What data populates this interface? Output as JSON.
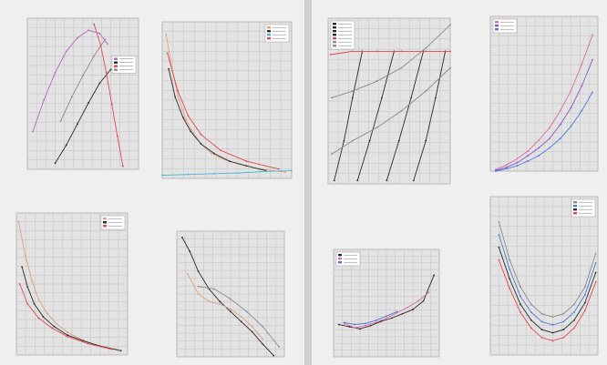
{
  "pages": [
    {
      "name": "left-sheet",
      "background": "#efefef"
    },
    {
      "name": "right-sheet",
      "background": "#efefef"
    }
  ],
  "colors": {
    "plot_bg": "#e3e3e3",
    "grid": "#b9b9b9",
    "black": "#2a2a2a",
    "orange": "#d9a27a",
    "red": "#e2474b",
    "pink": "#d96aa5",
    "purple": "#8a54c8",
    "blue": "#4f78d6",
    "cyan": "#45b8d6",
    "gray": "#8a8a8a"
  },
  "chart_data": [
    {
      "id": "c1",
      "type": "line",
      "title": "",
      "xlabel": "",
      "ylabel": "",
      "grid": true,
      "legend": "right",
      "xlim": [
        0,
        10
      ],
      "ylim": [
        0,
        10
      ],
      "series": [
        {
          "color": "#b06ab8",
          "x": [
            0.5,
            1.5,
            2.5,
            3.5,
            4.5,
            5.5,
            6.5,
            7.2
          ],
          "y": [
            2.5,
            4.6,
            6.4,
            7.8,
            8.7,
            9.2,
            9.0,
            8.3
          ]
        },
        {
          "color": "#2a2a2a",
          "x": [
            2.5,
            3.5,
            4.5,
            5.5,
            6.5,
            7.5
          ],
          "y": [
            0.4,
            1.6,
            3.0,
            4.4,
            5.7,
            6.6
          ]
        },
        {
          "color": "#e2474b",
          "x": [
            6.0,
            6.6,
            7.1,
            7.6,
            8.1,
            8.6
          ],
          "y": [
            9.6,
            8.2,
            6.4,
            4.3,
            2.2,
            0.2
          ]
        },
        {
          "color": "#8a8a8a",
          "x": [
            3.0,
            4.0,
            5.0,
            6.0,
            7.0
          ],
          "y": [
            3.2,
            4.8,
            6.2,
            7.5,
            8.6
          ]
        }
      ]
    },
    {
      "id": "c2",
      "type": "line",
      "title": "",
      "xlabel": "",
      "ylabel": "",
      "grid": true,
      "legend": "top-right",
      "xlim": [
        0,
        10
      ],
      "ylim": [
        0,
        10
      ],
      "series": [
        {
          "color": "#d9a27a",
          "x": [
            0.3,
            0.8,
            1.3,
            1.8,
            2.4,
            3.0,
            3.8,
            4.8,
            6.0,
            7.5,
            9.5
          ],
          "y": [
            9.2,
            6.8,
            5.0,
            3.8,
            2.9,
            2.2,
            1.6,
            1.2,
            0.9,
            0.6,
            0.4
          ]
        },
        {
          "color": "#2a2a2a",
          "x": [
            0.5,
            1.0,
            1.6,
            2.2,
            3.0,
            4.0,
            5.2,
            6.5,
            8.0
          ],
          "y": [
            7.0,
            5.2,
            3.9,
            3.0,
            2.2,
            1.6,
            1.1,
            0.8,
            0.5
          ]
        },
        {
          "color": "#45b8d6",
          "x": [
            0.0,
            2.0,
            4.0,
            6.0,
            8.0,
            10.0
          ],
          "y": [
            0.2,
            0.25,
            0.3,
            0.35,
            0.45,
            0.5
          ]
        },
        {
          "color": "#e2474b",
          "x": [
            0.4,
            1.2,
            2.0,
            3.0,
            4.5,
            6.5,
            9.0
          ],
          "y": [
            8.0,
            5.6,
            4.0,
            2.8,
            1.8,
            1.1,
            0.6
          ]
        }
      ]
    },
    {
      "id": "c3",
      "type": "line",
      "title": "",
      "xlabel": "",
      "ylabel": "",
      "grid": true,
      "legend": "top-right",
      "xlim": [
        0,
        10
      ],
      "ylim": [
        0,
        10
      ],
      "series": [
        {
          "color": "#d9a27a",
          "x": [
            0.2,
            0.8,
            1.4,
            2.0,
            2.8,
            3.6,
            4.6,
            5.8,
            7.2,
            9.0
          ],
          "y": [
            9.4,
            7.0,
            5.2,
            3.9,
            2.9,
            2.2,
            1.6,
            1.1,
            0.7,
            0.4
          ]
        },
        {
          "color": "#2a2a2a",
          "x": [
            0.5,
            1.0,
            1.6,
            2.4,
            3.4,
            4.6,
            6.0,
            7.6,
            9.4
          ],
          "y": [
            6.2,
            4.8,
            3.6,
            2.7,
            2.0,
            1.4,
            1.0,
            0.6,
            0.3
          ]
        },
        {
          "color": "#e2474b",
          "x": [
            0.3,
            1.0,
            2.0,
            3.2,
            4.6,
            6.4,
            8.6
          ],
          "y": [
            5.0,
            3.6,
            2.6,
            1.9,
            1.3,
            0.8,
            0.4
          ]
        }
      ]
    },
    {
      "id": "c4",
      "type": "line",
      "title": "",
      "xlabel": "",
      "ylabel": "",
      "grid": true,
      "legend": "none",
      "xlim": [
        0,
        10
      ],
      "ylim": [
        0,
        10
      ],
      "series": [
        {
          "color": "#2a2a2a",
          "x": [
            0.5,
            1.2,
            2.0,
            3.0,
            4.0,
            5.0,
            6.0,
            7.0,
            8.0,
            9.0
          ],
          "y": [
            9.5,
            8.4,
            6.8,
            5.4,
            4.4,
            3.6,
            2.8,
            2.0,
            1.0,
            0.1
          ]
        },
        {
          "color": "#d9a27a",
          "x": [
            1.0,
            2.0,
            3.0,
            4.0,
            5.0,
            6.0,
            7.0,
            8.0
          ],
          "y": [
            6.6,
            5.0,
            4.4,
            4.2,
            3.8,
            3.2,
            2.4,
            1.4
          ]
        },
        {
          "color": "#8a8a8a",
          "x": [
            2.0,
            3.5,
            5.0,
            6.5,
            8.0,
            9.5
          ],
          "y": [
            5.6,
            5.4,
            4.6,
            3.6,
            2.4,
            0.8
          ]
        }
      ]
    },
    {
      "id": "c5",
      "type": "line",
      "title": "",
      "xlabel": "",
      "ylabel": "",
      "grid": true,
      "legend": "top-left",
      "xlim": [
        0,
        10
      ],
      "ylim": [
        0,
        10
      ],
      "series": [
        {
          "color": "#2a2a2a",
          "x": [
            0.5,
            1.3,
            2.0,
            2.8
          ],
          "y": [
            0.2,
            2.6,
            5.2,
            8.0
          ]
        },
        {
          "color": "#2a2a2a",
          "x": [
            2.4,
            3.4,
            4.4,
            5.4
          ],
          "y": [
            0.2,
            2.6,
            5.2,
            8.0
          ]
        },
        {
          "color": "#2a2a2a",
          "x": [
            4.8,
            5.8,
            6.8,
            7.8
          ],
          "y": [
            0.2,
            2.6,
            5.2,
            8.0
          ]
        },
        {
          "color": "#2a2a2a",
          "x": [
            7.0,
            8.0,
            8.8,
            9.6
          ],
          "y": [
            0.2,
            2.6,
            5.2,
            8.0
          ]
        },
        {
          "color": "#e2474b",
          "x": [
            0.2,
            2.0,
            4.0,
            6.0,
            8.0,
            10.0
          ],
          "y": [
            7.8,
            8.0,
            8.0,
            8.0,
            8.0,
            8.0
          ]
        },
        {
          "color": "#8a8a8a",
          "x": [
            0.3,
            2.0,
            4.0,
            6.0,
            8.0,
            10.0
          ],
          "y": [
            5.2,
            5.6,
            6.2,
            7.0,
            8.2,
            9.6
          ]
        },
        {
          "color": "#8a8a8a",
          "x": [
            0.3,
            2.0,
            4.0,
            6.0,
            8.0,
            10.0
          ],
          "y": [
            1.8,
            2.6,
            3.4,
            4.4,
            5.6,
            7.0
          ]
        }
      ]
    },
    {
      "id": "c6",
      "type": "line",
      "title": "",
      "xlabel": "",
      "ylabel": "",
      "grid": true,
      "legend": "top-left",
      "xlim": [
        0,
        10
      ],
      "ylim": [
        0,
        10
      ],
      "series": [
        {
          "color": "#d96aa5",
          "x": [
            0.5,
            1.5,
            2.5,
            3.5,
            4.5,
            5.5,
            6.5,
            7.5,
            8.5,
            9.5
          ],
          "y": [
            0.1,
            0.4,
            0.8,
            1.3,
            2.0,
            2.8,
            3.9,
            5.2,
            6.9,
            8.8
          ]
        },
        {
          "color": "#8a54c8",
          "x": [
            0.5,
            1.5,
            2.5,
            3.5,
            4.5,
            5.5,
            6.5,
            7.5,
            8.5,
            9.5
          ],
          "y": [
            0.05,
            0.25,
            0.55,
            1.0,
            1.5,
            2.1,
            3.0,
            4.1,
            5.5,
            7.2
          ]
        },
        {
          "color": "#4f78d6",
          "x": [
            0.5,
            1.5,
            2.5,
            3.5,
            4.5,
            5.5,
            6.5,
            7.5,
            8.5,
            9.5
          ],
          "y": [
            0.0,
            0.15,
            0.35,
            0.65,
            1.0,
            1.5,
            2.1,
            2.9,
            3.9,
            5.1
          ]
        }
      ]
    },
    {
      "id": "c7",
      "type": "line",
      "title": "",
      "xlabel": "",
      "ylabel": "",
      "grid": true,
      "legend": "top-left",
      "xlim": [
        0,
        10
      ],
      "ylim": [
        0,
        10
      ],
      "series": [
        {
          "color": "#2a2a2a",
          "x": [
            0.5,
            1.5,
            2.5,
            3.5,
            4.5,
            5.5,
            6.5,
            7.5,
            8.5,
            9.5
          ],
          "y": [
            3.0,
            2.8,
            2.6,
            2.9,
            3.3,
            3.6,
            4.0,
            4.4,
            5.2,
            7.6
          ]
        },
        {
          "color": "#d96aa5",
          "x": [
            1.0,
            2.0,
            3.0,
            4.0,
            5.0,
            6.0,
            7.0,
            8.0,
            9.0
          ],
          "y": [
            3.1,
            2.7,
            2.9,
            3.2,
            3.6,
            4.1,
            4.6,
            5.2,
            6.0
          ]
        },
        {
          "color": "#4f78d6",
          "x": [
            1.0,
            2.0,
            3.0,
            4.0,
            5.0,
            6.0
          ],
          "y": [
            3.2,
            3.0,
            3.1,
            3.4,
            3.8,
            4.2
          ]
        }
      ]
    },
    {
      "id": "c8",
      "type": "line",
      "title": "",
      "xlabel": "",
      "ylabel": "",
      "grid": true,
      "legend": "top-right",
      "xlim": [
        0,
        10
      ],
      "ylim": [
        0,
        10
      ],
      "series": [
        {
          "color": "#8a8a8a",
          "x": [
            0.8,
            1.8,
            2.8,
            3.8,
            4.8,
            5.8,
            6.8,
            7.8,
            8.8,
            9.8
          ],
          "y": [
            8.4,
            6.0,
            4.3,
            3.2,
            2.6,
            2.4,
            2.6,
            3.2,
            4.3,
            6.4
          ]
        },
        {
          "color": "#4f78d6",
          "x": [
            0.8,
            1.8,
            2.8,
            3.8,
            4.8,
            5.8,
            6.8,
            7.8,
            8.8,
            9.8
          ],
          "y": [
            7.6,
            5.4,
            3.7,
            2.7,
            2.1,
            1.9,
            2.1,
            2.7,
            3.8,
            5.8
          ]
        },
        {
          "color": "#2a2a2a",
          "x": [
            0.8,
            1.8,
            2.8,
            3.8,
            4.8,
            5.8,
            6.8,
            7.8,
            8.8,
            9.8
          ],
          "y": [
            6.8,
            4.8,
            3.2,
            2.2,
            1.6,
            1.4,
            1.6,
            2.2,
            3.3,
            5.2
          ]
        },
        {
          "color": "#e2474b",
          "x": [
            0.8,
            1.8,
            2.8,
            3.8,
            4.8,
            5.8,
            6.8,
            7.8,
            8.8,
            9.8
          ],
          "y": [
            6.0,
            4.2,
            2.7,
            1.7,
            1.1,
            0.9,
            1.1,
            1.7,
            2.8,
            4.6
          ]
        }
      ]
    }
  ]
}
